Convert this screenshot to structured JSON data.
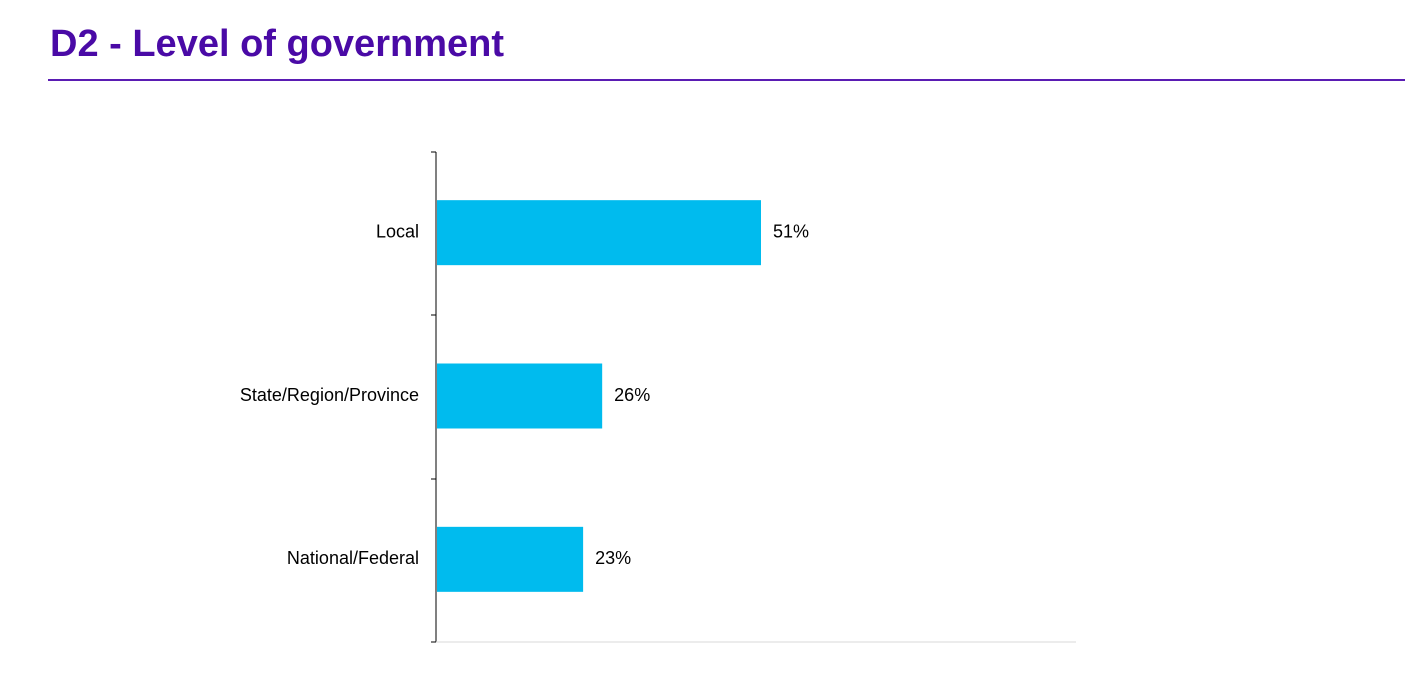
{
  "page": {
    "title": "D2 - Level of government"
  },
  "chart_data": {
    "type": "bar",
    "orientation": "horizontal",
    "categories": [
      "Local",
      "State/Region/Province",
      "National/Federal"
    ],
    "values": [
      51,
      26,
      23
    ],
    "data_labels": [
      "51%",
      "26%",
      "23%"
    ],
    "unit": "%",
    "xlim": [
      0,
      100
    ],
    "grid": false,
    "legend": "none",
    "colors": {
      "bar": "#00bbee",
      "title": "#4a0aa6",
      "rule": "#5a1cb3"
    }
  }
}
